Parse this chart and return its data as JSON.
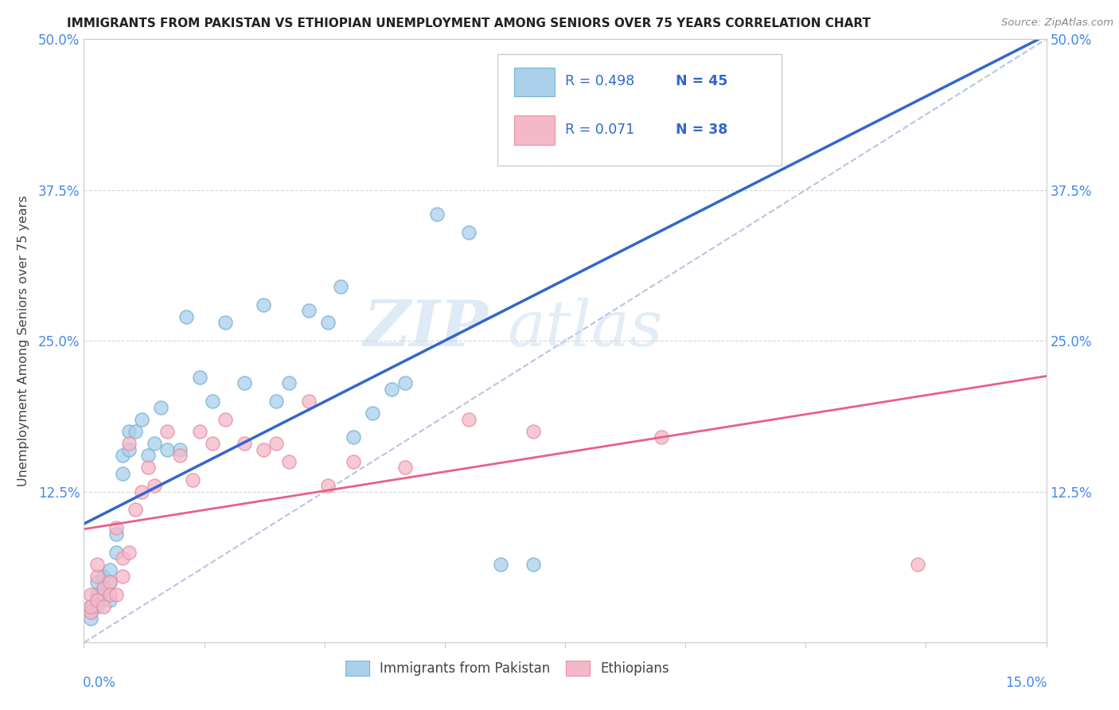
{
  "title": "IMMIGRANTS FROM PAKISTAN VS ETHIOPIAN UNEMPLOYMENT AMONG SENIORS OVER 75 YEARS CORRELATION CHART",
  "source": "Source: ZipAtlas.com",
  "ylabel": "Unemployment Among Seniors over 75 years",
  "xlim": [
    0.0,
    0.15
  ],
  "ylim": [
    0.0,
    0.5
  ],
  "ytick_pos": [
    0.0,
    0.125,
    0.25,
    0.375,
    0.5
  ],
  "ytick_labels": [
    "",
    "12.5%",
    "25.0%",
    "37.5%",
    "50.0%"
  ],
  "color_pakistan": "#aacfea",
  "color_pakistan_edge": "#7ab3d4",
  "color_pakistan_line": "#3366cc",
  "color_ethiopia": "#f5b8c8",
  "color_ethiopia_edge": "#e890a8",
  "color_ethiopia_line": "#e8608a",
  "color_diagonal": "#aabbdd",
  "watermark_zip": "ZIP",
  "watermark_atlas": "atlas",
  "legend_r1": "R = 0.498",
  "legend_n1": "N = 45",
  "legend_r2": "R = 0.071",
  "legend_n2": "N = 38",
  "legend_color_r": "#3366cc",
  "legend_color_n": "#3366cc",
  "pakistan_x": [
    0.001,
    0.001,
    0.001,
    0.002,
    0.002,
    0.002,
    0.002,
    0.003,
    0.003,
    0.003,
    0.004,
    0.004,
    0.004,
    0.005,
    0.005,
    0.006,
    0.006,
    0.007,
    0.007,
    0.008,
    0.009,
    0.01,
    0.011,
    0.012,
    0.013,
    0.015,
    0.016,
    0.018,
    0.02,
    0.022,
    0.025,
    0.028,
    0.03,
    0.032,
    0.035,
    0.038,
    0.04,
    0.042,
    0.045,
    0.048,
    0.05,
    0.055,
    0.06,
    0.065,
    0.07
  ],
  "pakistan_y": [
    0.03,
    0.025,
    0.02,
    0.05,
    0.04,
    0.035,
    0.03,
    0.055,
    0.045,
    0.04,
    0.06,
    0.05,
    0.035,
    0.09,
    0.075,
    0.155,
    0.14,
    0.175,
    0.16,
    0.175,
    0.185,
    0.155,
    0.165,
    0.195,
    0.16,
    0.16,
    0.27,
    0.22,
    0.2,
    0.265,
    0.215,
    0.28,
    0.2,
    0.215,
    0.275,
    0.265,
    0.295,
    0.17,
    0.19,
    0.21,
    0.215,
    0.355,
    0.34,
    0.065,
    0.065
  ],
  "ethiopia_x": [
    0.001,
    0.001,
    0.001,
    0.002,
    0.002,
    0.002,
    0.003,
    0.003,
    0.004,
    0.004,
    0.005,
    0.005,
    0.006,
    0.006,
    0.007,
    0.007,
    0.008,
    0.009,
    0.01,
    0.011,
    0.013,
    0.015,
    0.017,
    0.018,
    0.02,
    0.022,
    0.025,
    0.028,
    0.03,
    0.032,
    0.035,
    0.038,
    0.042,
    0.05,
    0.06,
    0.07,
    0.09,
    0.13
  ],
  "ethiopia_y": [
    0.025,
    0.04,
    0.03,
    0.055,
    0.035,
    0.065,
    0.045,
    0.03,
    0.05,
    0.04,
    0.095,
    0.04,
    0.07,
    0.055,
    0.165,
    0.075,
    0.11,
    0.125,
    0.145,
    0.13,
    0.175,
    0.155,
    0.135,
    0.175,
    0.165,
    0.185,
    0.165,
    0.16,
    0.165,
    0.15,
    0.2,
    0.13,
    0.15,
    0.145,
    0.185,
    0.175,
    0.17,
    0.065
  ]
}
